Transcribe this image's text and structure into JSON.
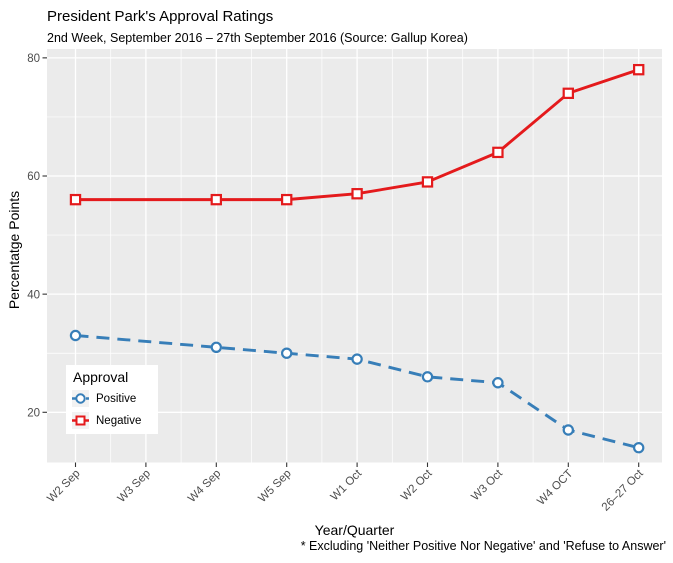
{
  "title": "President Park's Approval Ratings",
  "subtitle": "2nd Week, September 2016 – 27th September 2016 (Source: Gallup Korea)",
  "caption": "* Excluding 'Neither Positive Nor Negative' and 'Refuse to Answer'",
  "legend": {
    "title": "Approval",
    "items": [
      {
        "label": "Positive"
      },
      {
        "label": "Negative"
      }
    ]
  },
  "chart_data": {
    "type": "line",
    "title": "President Park's Approval Ratings",
    "subtitle": "2nd Week, September 2016 – 27th September 2016 (Source: Gallup Korea)",
    "xlabel": "Year/Quarter",
    "ylabel": "Percentatge Points",
    "caption": "* Excluding 'Neither Positive Nor Negative' and 'Refuse to Answer'",
    "categories": [
      "W2 Sep",
      "W3 Sep",
      "W4 Sep",
      "W5 Sep",
      "W1 Oct",
      "W2 Oct",
      "W3 Oct",
      "W4 OCT",
      "26–27 Oct"
    ],
    "series": [
      {
        "name": "Positive",
        "color": "#377EB8",
        "line_style": "dashed",
        "marker": "circle",
        "values": [
          33,
          null,
          31,
          30,
          29,
          26,
          25,
          17,
          14
        ]
      },
      {
        "name": "Negative",
        "color": "#E41A1C",
        "line_style": "solid",
        "marker": "square",
        "values": [
          56,
          null,
          56,
          56,
          57,
          59,
          64,
          74,
          78
        ]
      }
    ],
    "note": "no data points at W3 Sep; lines connect across",
    "y_ticks": [
      20,
      40,
      60,
      80
    ],
    "y_minor_ticks": [
      30,
      50,
      70
    ],
    "ylim": [
      11.5,
      81.5
    ],
    "legend_title": "Approval",
    "legend_position": "inside left",
    "grid": true,
    "panel_bg": "#EBEBEB",
    "grid_color": "#FFFFFF",
    "tick_color": "#333333",
    "tick_label_color": "#4D4D4D"
  }
}
